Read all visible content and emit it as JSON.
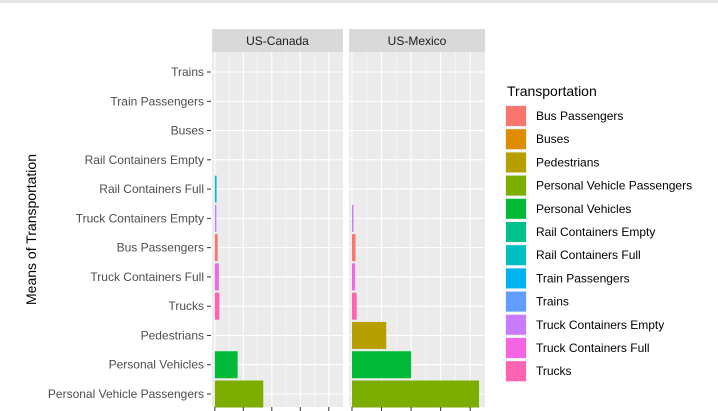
{
  "chart_data": {
    "type": "bar",
    "orientation": "horizontal",
    "ylabel": "Means of Transportation",
    "xlabel": "",
    "categories": [
      "Trains",
      "Train Passengers",
      "Buses",
      "Rail Containers Empty",
      "Rail Containers Full",
      "Truck Containers Empty",
      "Bus Passengers",
      "Truck Containers Full",
      "Trucks",
      "Pedestrians",
      "Personal Vehicles",
      "Personal Vehicle Passengers"
    ],
    "facets": [
      {
        "name": "US-Canada",
        "values": [
          0.0,
          0.0,
          0.0,
          0.0,
          0.3,
          0.2,
          0.5,
          0.7,
          0.8,
          0.0,
          4.0,
          8.5
        ]
      },
      {
        "name": "US-Mexico",
        "values": [
          0.0,
          0.0,
          0.0,
          0.0,
          0.0,
          0.2,
          0.6,
          0.5,
          0.8,
          5.8,
          10.0,
          21.5
        ]
      }
    ],
    "xlim": [
      -0.5,
      22.5
    ],
    "grid": true,
    "legend": {
      "title": "Transportation",
      "placement": "right",
      "items": [
        {
          "label": "Bus Passengers",
          "color": "#F8766D"
        },
        {
          "label": "Buses",
          "color": "#DE8C00"
        },
        {
          "label": "Pedestrians",
          "color": "#B79F00"
        },
        {
          "label": "Personal Vehicle Passengers",
          "color": "#7CAE00"
        },
        {
          "label": "Personal Vehicles",
          "color": "#00BA38"
        },
        {
          "label": "Rail Containers Empty",
          "color": "#00C08B"
        },
        {
          "label": "Rail Containers Full",
          "color": "#00BFC4"
        },
        {
          "label": "Train Passengers",
          "color": "#00B4F0"
        },
        {
          "label": "Trains",
          "color": "#619CFF"
        },
        {
          "label": "Truck Containers Empty",
          "color": "#C77CFF"
        },
        {
          "label": "Truck Containers Full",
          "color": "#F564E3"
        },
        {
          "label": "Trucks",
          "color": "#FF64B0"
        }
      ]
    }
  }
}
